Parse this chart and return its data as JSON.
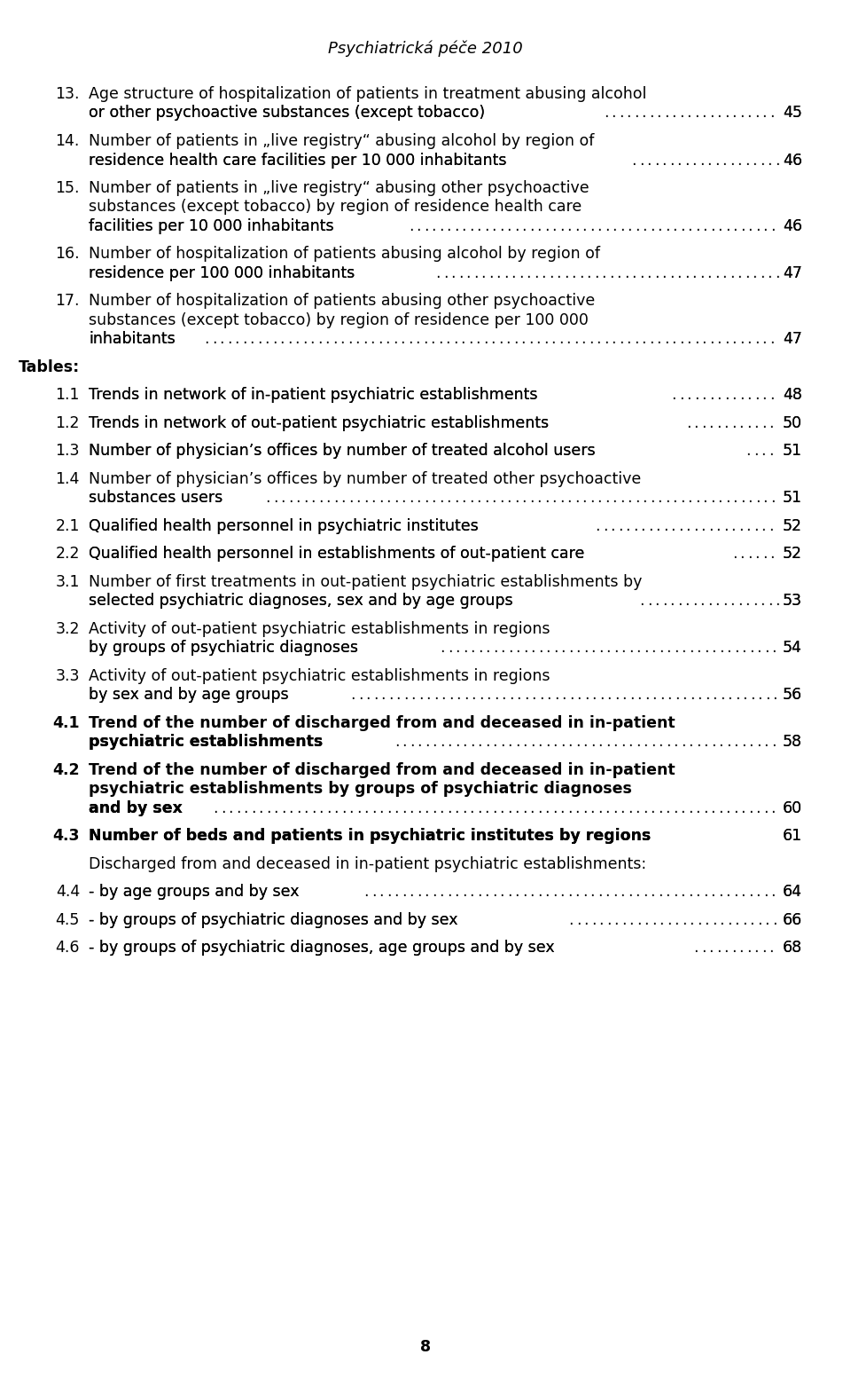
{
  "header": "Psychiatrická péče 2010",
  "background_color": "#ffffff",
  "text_color": "#000000",
  "page_number": "8",
  "entries": [
    {
      "number": "13.",
      "text": "Age structure of hospitalization of patients in treatment abusing alcohol\nor other psychoactive substances (except tobacco)",
      "page": "45",
      "bold": false
    },
    {
      "number": "14.",
      "text": "Number of patients in „live registry“ abusing alcohol by region of\nresidence health care facilities per 10 000 inhabitants",
      "page": "46",
      "bold": false
    },
    {
      "number": "15.",
      "text": "Number of patients in „live registry“ abusing other psychoactive\nsubstances (except tobacco) by region of residence health care\nfacilities per 10 000 inhabitants",
      "page": "46",
      "bold": false
    },
    {
      "number": "16.",
      "text": "Number of hospitalization of patients abusing alcohol by region of\nresidence per 100 000 inhabitants",
      "page": "47",
      "bold": false
    },
    {
      "number": "17.",
      "text": "Number of hospitalization of patients abusing other psychoactive\nsubstances (except tobacco) by region of residence per 100 000\ninhabitants",
      "page": "47",
      "bold": false
    },
    {
      "number": "Tables:",
      "text": "",
      "page": "",
      "bold": true
    },
    {
      "number": "1.1",
      "text": "Trends in network of in-patient psychiatric establishments",
      "page": "48",
      "bold": false
    },
    {
      "number": "1.2",
      "text": "Trends in network of out-patient psychiatric establishments",
      "page": "50",
      "bold": false
    },
    {
      "number": "1.3",
      "text": "Number of physician’s offices by number of treated alcohol users",
      "page": "51",
      "bold": false
    },
    {
      "number": "1.4",
      "text": "Number of physician’s offices by number of treated other psychoactive\nsubstances users",
      "page": "51",
      "bold": false
    },
    {
      "number": "2.1",
      "text": "Qualified health personnel in psychiatric institutes",
      "page": "52",
      "bold": false
    },
    {
      "number": "2.2",
      "text": "Qualified health personnel in establishments of out-patient care",
      "page": "52",
      "bold": false
    },
    {
      "number": "3.1",
      "text": "Number of first treatments in out-patient psychiatric establishments by\nselected psychiatric diagnoses, sex and by age groups",
      "page": "53",
      "bold": false
    },
    {
      "number": "3.2",
      "text": "Activity of out-patient psychiatric establishments in regions\nby groups of psychiatric diagnoses",
      "page": "54",
      "bold": false
    },
    {
      "number": "3.3",
      "text": "Activity of out-patient psychiatric establishments in regions\nby sex and by age groups",
      "page": "56",
      "bold": false
    },
    {
      "number": "4.1",
      "text": "Trend of the number of discharged from and deceased in in-patient\npsychiatric establishments",
      "page": "58",
      "bold": true
    },
    {
      "number": "4.2",
      "text": "Trend of the number of discharged from and deceased in in-patient\npsychiatric establishments by groups of psychiatric diagnoses\nand by sex",
      "page": "60",
      "bold": true
    },
    {
      "number": "4.3",
      "text": "Number of beds and patients in psychiatric institutes by regions",
      "page": "61",
      "bold": true
    },
    {
      "number": "",
      "text": "Discharged from and deceased in in-patient psychiatric establishments:",
      "page": "",
      "bold": false
    },
    {
      "number": "4.4",
      "text": "- by age groups and by sex",
      "page": "64",
      "bold": false
    },
    {
      "number": "4.5",
      "text": "- by groups of psychiatric diagnoses and by sex",
      "page": "66",
      "bold": false
    },
    {
      "number": "4.6",
      "text": "- by groups of psychiatric diagnoses, age groups and by sex",
      "page": "68",
      "bold": false
    }
  ]
}
